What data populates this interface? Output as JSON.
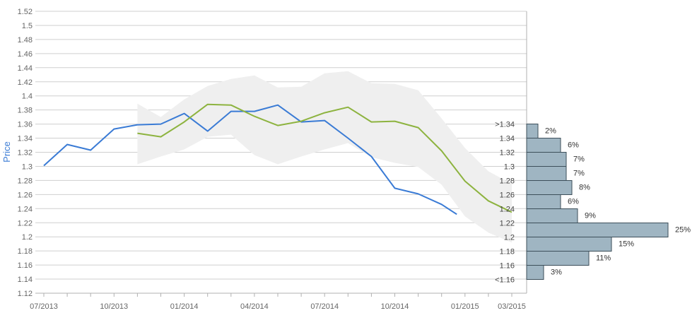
{
  "chart_data": {
    "type": "line",
    "ylabel": "Price",
    "ylim": [
      1.12,
      1.52
    ],
    "y_ticks": [
      "1.12",
      "1.14",
      "1.16",
      "1.18",
      "1.2",
      "1.22",
      "1.24",
      "1.26",
      "1.28",
      "1.3",
      "1.32",
      "1.34",
      "1.36",
      "1.38",
      "1.4",
      "1.42",
      "1.44",
      "1.46",
      "1.48",
      "1.5",
      "1.52"
    ],
    "x_ticks": [
      "07/2013",
      "10/2013",
      "01/2014",
      "04/2014",
      "07/2014",
      "10/2014",
      "01/2015",
      "03/2015"
    ],
    "grid": true,
    "colors": {
      "actual": "#3a7bd5",
      "forecast": "#8db33f",
      "band": "#efefef",
      "hist_fill": "#9fb5c2",
      "hist_edge": "#3d4f5a"
    },
    "series": [
      {
        "key": "actual",
        "x": [
          "07/2013",
          "08/2013",
          "09/2013",
          "10/2013",
          "11/2013",
          "12/2013",
          "01/2014",
          "02/2014",
          "03/2014",
          "04/2014",
          "05/2014",
          "06/2014",
          "07/2014",
          "08/2014",
          "09/2014",
          "10/2014",
          "11/2014",
          "12/2014",
          "12/2014b"
        ],
        "values": [
          1.301,
          1.331,
          1.323,
          1.353,
          1.359,
          1.36,
          1.375,
          1.35,
          1.378,
          1.378,
          1.387,
          1.363,
          1.365,
          1.34,
          1.314,
          1.269,
          1.261,
          1.246,
          1.232
        ]
      },
      {
        "key": "forecast",
        "x": [
          "11/2013",
          "12/2013",
          "01/2014",
          "02/2014",
          "03/2014",
          "04/2014",
          "05/2014",
          "06/2014",
          "07/2014",
          "08/2014",
          "09/2014",
          "10/2014",
          "11/2014",
          "12/2014",
          "01/2015",
          "02/2015",
          "03/2015"
        ],
        "values": [
          1.347,
          1.342,
          1.363,
          1.388,
          1.387,
          1.371,
          1.358,
          1.364,
          1.376,
          1.384,
          1.363,
          1.364,
          1.355,
          1.322,
          1.279,
          1.251,
          1.235
        ]
      }
    ],
    "band": {
      "upper": [
        1.389,
        1.37,
        1.395,
        1.414,
        1.424,
        1.429,
        1.412,
        1.413,
        1.432,
        1.435,
        1.418,
        1.417,
        1.408,
        1.368,
        1.326,
        1.293,
        1.275
      ],
      "lower": [
        1.303,
        1.314,
        1.324,
        1.342,
        1.345,
        1.316,
        1.303,
        1.314,
        1.324,
        1.333,
        1.313,
        1.305,
        1.299,
        1.274,
        1.229,
        1.206,
        1.192
      ]
    },
    "histogram": {
      "bins": [
        {
          "label": ">1.34",
          "pct": "2%",
          "value": 2
        },
        {
          "label": "1.34",
          "pct": "6%",
          "value": 6
        },
        {
          "label": "1.32",
          "pct": "7%",
          "value": 7
        },
        {
          "label": "1.3",
          "pct": "7%",
          "value": 7
        },
        {
          "label": "1.28",
          "pct": "8%",
          "value": 8
        },
        {
          "label": "1.26",
          "pct": "6%",
          "value": 6
        },
        {
          "label": "1.24",
          "pct": "9%",
          "value": 9
        },
        {
          "label": "1.22",
          "pct": "25%",
          "value": 25
        },
        {
          "label": "1.2",
          "pct": "15%",
          "value": 15
        },
        {
          "label": "1.18",
          "pct": "11%",
          "value": 11
        },
        {
          "label": "1.16",
          "pct": "3%",
          "value": 3
        },
        {
          "label": "<1.16",
          "pct": "",
          "value": 0
        }
      ]
    }
  }
}
